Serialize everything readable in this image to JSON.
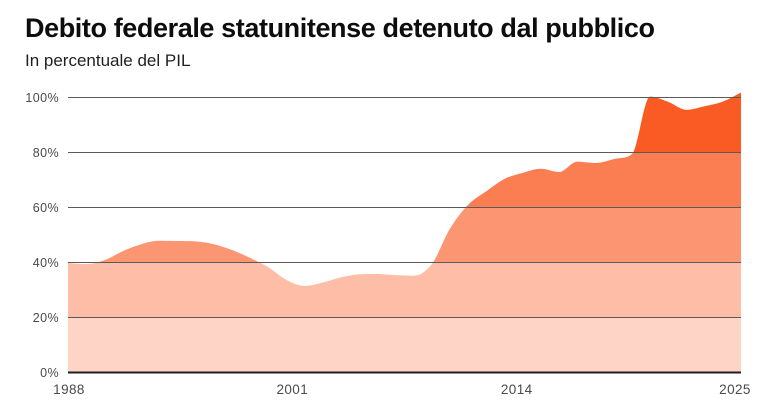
{
  "header": {
    "title": "Debito federale statunitense detenuto dal pubblico",
    "subtitle": "In percentuale del PIL"
  },
  "chart_data": {
    "type": "area",
    "title": "Debito federale statunitense detenuto dal pubblico",
    "subtitle": "In percentuale del PIL",
    "x": [
      1988,
      1989,
      1990,
      1991,
      1992,
      1993,
      1994,
      1995,
      1996,
      1997,
      1998,
      1999,
      2000,
      2001,
      2002,
      2003,
      2004,
      2005,
      2006,
      2007,
      2008,
      2009,
      2010,
      2011,
      2012,
      2013,
      2014,
      2015,
      2016,
      2017,
      2018,
      2019,
      2020,
      2021,
      2022,
      2023,
      2024,
      2025
    ],
    "values": [
      39.8,
      39.4,
      40.8,
      44.1,
      46.6,
      47.9,
      47.8,
      47.7,
      46.7,
      44.6,
      41.7,
      38.3,
      33.7,
      31.5,
      32.7,
      34.6,
      35.7,
      35.8,
      35.4,
      35.2,
      39.4,
      52.3,
      61.0,
      65.9,
      70.4,
      72.6,
      74.1,
      72.9,
      76.7,
      76.2,
      77.6,
      79.4,
      100.3,
      98.4,
      95.5,
      96.8,
      98.5,
      101.8
    ],
    "xlabel": "",
    "ylabel": "In percentuale del PIL",
    "xlim": [
      1988,
      2025
    ],
    "ylim": [
      0,
      100
    ],
    "x_tick_labels": [
      "1988",
      "2001",
      "2014",
      "2025"
    ],
    "y_tick_labels": [
      "0%",
      "20%",
      "40%",
      "60%",
      "80%",
      "100%"
    ],
    "grid": true,
    "legend": false,
    "colors": {
      "base": "#fa5a23",
      "band_opacities": [
        0.26,
        0.4,
        0.64,
        0.78,
        1.0
      ],
      "grid": "#5a5a5a",
      "baseline": "#1f1f1f",
      "axis_label": "#4a4a4a"
    }
  }
}
